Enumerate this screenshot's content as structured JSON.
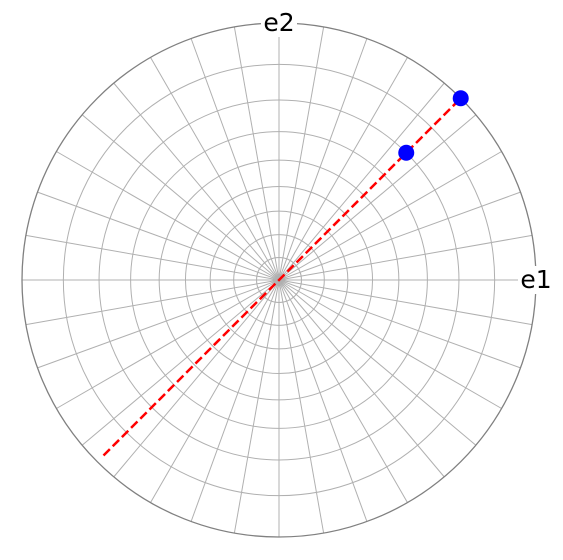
{
  "chart_data": {
    "type": "polar",
    "projection": "stereographic",
    "axis_labels": [
      {
        "label": "e1",
        "theta": 0
      },
      {
        "label": "e2",
        "theta": 90
      }
    ],
    "rlim": [
      0,
      90
    ],
    "rticks": [
      10,
      20,
      30,
      40,
      50,
      60,
      70,
      80,
      90
    ],
    "thetaticks": [
      0,
      10,
      20,
      30,
      40,
      50,
      60,
      70,
      80,
      90,
      100,
      110,
      120,
      130,
      140,
      150,
      160,
      170,
      180,
      190,
      200,
      210,
      220,
      230,
      240,
      250,
      260,
      270,
      280,
      290,
      300,
      310,
      320,
      330,
      340,
      350
    ],
    "grid": true,
    "series": [
      {
        "kind": "line",
        "color": "#ff0000",
        "dashed": true,
        "theta": [
          225,
          45
        ],
        "r": [
          88,
          90
        ]
      },
      {
        "kind": "points",
        "color": "#0000ff",
        "theta": [
          45,
          45
        ],
        "r": [
          90,
          70
        ]
      }
    ]
  }
}
